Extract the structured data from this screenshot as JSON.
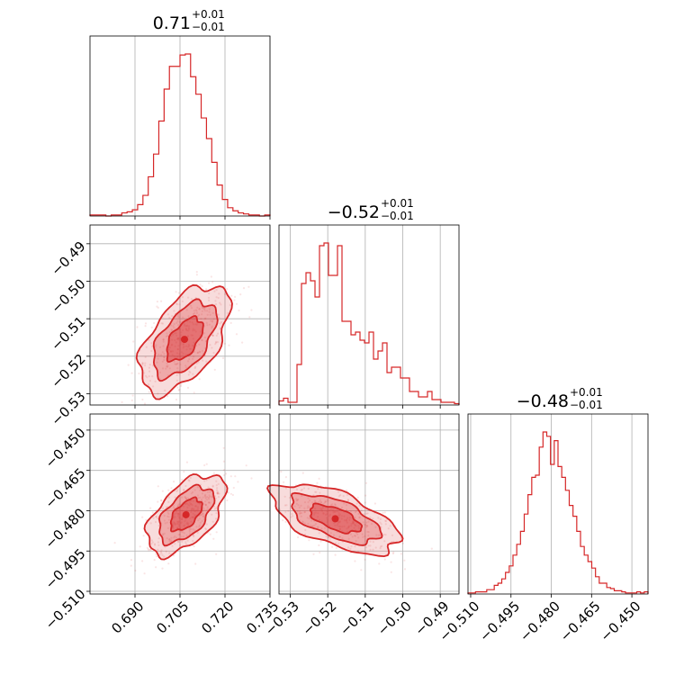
{
  "chart_data": {
    "type": "corner",
    "color": "#d62728",
    "grid": true,
    "params": [
      {
        "median": 0.71,
        "range": [
          0.675,
          0.735
        ],
        "ticks": [
          0.69,
          0.705,
          0.72,
          0.735
        ],
        "tick_labels": [
          "0.690",
          "0.705",
          "0.720",
          "0.735"
        ]
      },
      {
        "median": -0.52,
        "range": [
          -0.533,
          -0.485
        ],
        "ticks": [
          -0.53,
          -0.52,
          -0.51,
          -0.5,
          -0.49
        ],
        "tick_labels": [
          "−0.53",
          "−0.52",
          "−0.51",
          "−0.50",
          "−0.49"
        ]
      },
      {
        "median": -0.48,
        "range": [
          -0.511,
          -0.444
        ],
        "ticks": [
          -0.51,
          -0.495,
          -0.48,
          -0.465,
          -0.45
        ],
        "tick_labels": [
          "−0.510",
          "−0.495",
          "−0.480",
          "−0.465",
          "−0.450"
        ]
      }
    ],
    "titles": [
      {
        "main": "0.71",
        "upper": "+0.01",
        "lower": "−0.01"
      },
      {
        "main": "−0.52",
        "upper": "+0.01",
        "lower": "−0.01"
      },
      {
        "main": "−0.48",
        "upper": "+0.01",
        "lower": "−0.01"
      }
    ],
    "histograms": [
      [
        1,
        1,
        1,
        0,
        1,
        1,
        3,
        4,
        6,
        11,
        20,
        38,
        60,
        92,
        123,
        145,
        145,
        156,
        157,
        135,
        118,
        95,
        75,
        52,
        30,
        16,
        8,
        5,
        3,
        2,
        1,
        1,
        0,
        1
      ],
      [
        3,
        5,
        2,
        2,
        30,
        90,
        98,
        92,
        80,
        118,
        120,
        96,
        96,
        118,
        62,
        62,
        52,
        54,
        48,
        46,
        54,
        34,
        40,
        46,
        24,
        28,
        28,
        20,
        20,
        10,
        10,
        6,
        6,
        10,
        4,
        4,
        2,
        2,
        2,
        1
      ],
      [
        1,
        1,
        2,
        2,
        2,
        4,
        4,
        8,
        10,
        14,
        20,
        26,
        36,
        46,
        58,
        74,
        92,
        108,
        110,
        136,
        150,
        146,
        120,
        142,
        118,
        108,
        96,
        82,
        72,
        58,
        44,
        36,
        30,
        24,
        16,
        10,
        10,
        6,
        5,
        3,
        3,
        2,
        1,
        1,
        1,
        2,
        1,
        2
      ]
    ],
    "scatter": {
      "1_0": {
        "center": [
          0.7065,
          -0.5155
        ],
        "spread": [
          0.0075,
          0.0072
        ],
        "rho": 0.55
      },
      "2_0": {
        "center": [
          0.707,
          -0.4815
        ],
        "spread": [
          0.0065,
          0.0075
        ],
        "rho": 0.55
      },
      "2_1": {
        "center": [
          -0.518,
          -0.483
        ],
        "spread": [
          0.0085,
          0.0065
        ],
        "rho": -0.6
      }
    }
  }
}
